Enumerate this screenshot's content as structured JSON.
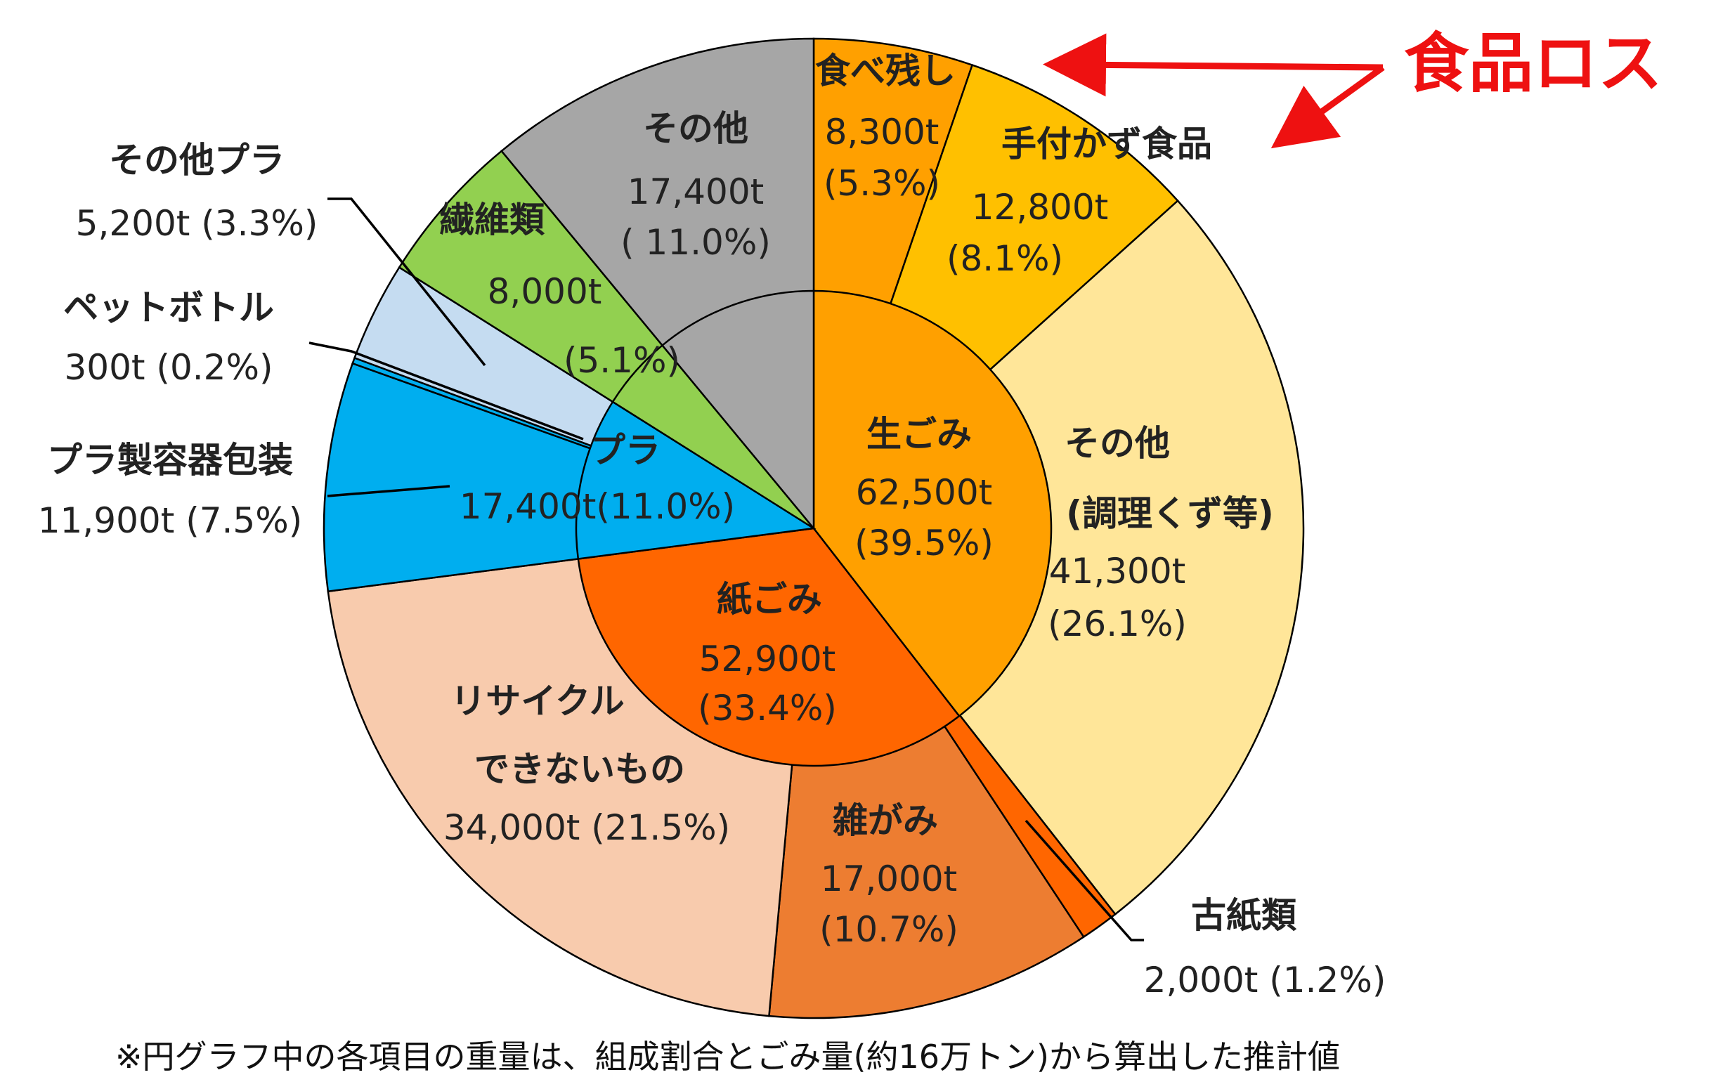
{
  "chart_data": {
    "type": "pie",
    "inner": [
      {
        "name": "生ごみ",
        "value": 62500,
        "value_text": "62,500t",
        "percent_text": "(39.5%)",
        "color": "#ffa000"
      },
      {
        "name": "紙ごみ",
        "value": 52900,
        "value_text": "52,900t",
        "percent_text": "(33.4%)",
        "color": "#ff6600"
      },
      {
        "name": "プラ",
        "value": 17400,
        "value_text": "17,400t(11.0%)",
        "color": "#00aeef"
      },
      {
        "name": "繊維類",
        "value": 8000,
        "value_text": "8,000t",
        "percent_text": "(5.1%)",
        "color": "#92d050"
      },
      {
        "name": "その他",
        "value": 17400,
        "value_text": "17,400t",
        "percent_text": "( 11.0%)",
        "color": "#a6a6a6"
      }
    ],
    "outer": [
      {
        "name": "食べ残し",
        "value": 8300,
        "value_text": "8,300t",
        "percent_text": "(5.3%)",
        "color": "#ffa000"
      },
      {
        "name": "手付かず食品",
        "value": 12800,
        "value_text": "12,800t",
        "percent_text": "(8.1%)",
        "color": "#ffc000"
      },
      {
        "name": "その他",
        "name2": "(調理くず等)",
        "value": 41300,
        "value_text": "41,300t",
        "percent_text": "(26.1%)",
        "color": "#ffe699"
      },
      {
        "name": "古紙類",
        "value": 2000,
        "value_text": "2,000t (1.2%)",
        "color": "#ff6600"
      },
      {
        "name": "雑がみ",
        "value": 17000,
        "value_text": "17,000t",
        "percent_text": "(10.7%)",
        "color": "#ed7d31"
      },
      {
        "name": "リサイクル",
        "name2": "できないもの",
        "value": 34000,
        "value_text": "34,000t (21.5%)",
        "color": "#f8cbad"
      },
      {
        "name": "プラ製容器包装",
        "value": 11900,
        "value_text": "11,900t (7.5%)",
        "color": "#00aeef"
      },
      {
        "name": "ペットボトル",
        "value": 300,
        "value_text": "300t (0.2%)",
        "color": "#00aeef"
      },
      {
        "name": "その他プラ",
        "value": 5200,
        "value_text": "5,200t (3.3%)",
        "color": "#c5dcf1"
      },
      {
        "name": "繊維類",
        "value": 8000,
        "value_text": "",
        "color": "#92d050"
      },
      {
        "name": "その他",
        "value": 17400,
        "value_text": "",
        "color": "#a6a6a6"
      }
    ]
  },
  "annotation": {
    "text": "食品ロス",
    "color": "#ee1111"
  },
  "footnote": "※円グラフ中の各項目の重量は、組成割合とごみ量(約16万トン)から算出した推計値"
}
